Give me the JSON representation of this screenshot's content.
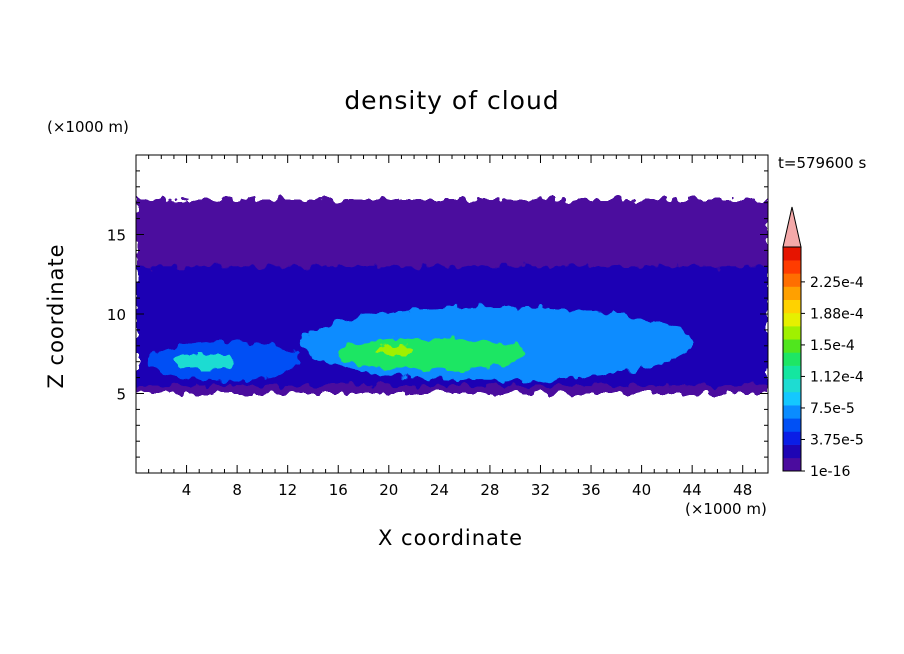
{
  "chart_data": {
    "type": "heatmap",
    "title": "density of cloud",
    "xlabel": "X coordinate",
    "ylabel": "Z coordinate",
    "x_multiplier": "(×1000 m)",
    "y_multiplier": "(×1000 m)",
    "time_label": "t=579600 s",
    "xlim": [
      0,
      50
    ],
    "ylim": [
      0,
      20
    ],
    "xticks": [
      4,
      8,
      12,
      16,
      20,
      24,
      28,
      32,
      36,
      40,
      44,
      48
    ],
    "yticks": [
      5,
      10,
      15
    ],
    "colorbar": {
      "labels": [
        "1e-16",
        "3.75e-5",
        "7.5e-5",
        "1.12e-4",
        "1.5e-4",
        "1.88e-4",
        "2.25e-4"
      ],
      "colors": [
        "#4b0c9e",
        "#1e05b4",
        "#0a1ee6",
        "#0050f5",
        "#0a8cff",
        "#14c8ff",
        "#1edcd2",
        "#14e6a0",
        "#1ee664",
        "#50e61e",
        "#a0f000",
        "#e6f000",
        "#ffd200",
        "#ffa000",
        "#ff6e00",
        "#ff3c00",
        "#e61400"
      ],
      "extend_color": "#f4a9a9"
    },
    "cloud_regions": [
      {
        "level": 0,
        "x": [
          0,
          50
        ],
        "z": [
          5.0,
          17.2
        ]
      },
      {
        "level": 1,
        "x": [
          0,
          50
        ],
        "z": [
          5.5,
          13.0
        ]
      },
      {
        "level": 3,
        "x": [
          1,
          13
        ],
        "z": [
          5.8,
          8.3
        ]
      },
      {
        "level": 6,
        "x": [
          3,
          8
        ],
        "z": [
          6.5,
          7.5
        ]
      },
      {
        "level": 4,
        "x": [
          13,
          44
        ],
        "z": [
          5.8,
          10.5
        ]
      },
      {
        "level": 8,
        "x": [
          16,
          31
        ],
        "z": [
          6.5,
          8.5
        ]
      },
      {
        "level": 10,
        "x": [
          19,
          22
        ],
        "z": [
          7.4,
          8.1
        ]
      }
    ]
  }
}
